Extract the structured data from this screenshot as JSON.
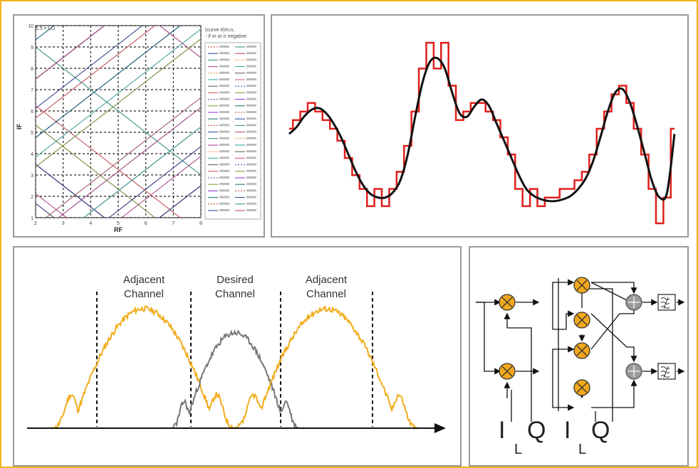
{
  "colors": {
    "frame": "#f2b31a",
    "panel_border": "#9a9a9a",
    "stair": "#e0201c",
    "smooth": "#111111",
    "adjacent": "#f2ac1c",
    "desired": "#777777",
    "mixer": "#f2a81c",
    "adder": "#9a9a9a"
  },
  "spur_chart": {
    "ylabel": "IF",
    "xlabel": "RF",
    "x_ticks": [
      "2",
      "3",
      "4",
      "5",
      "6",
      "7",
      "8"
    ],
    "y_ticks": [
      "1",
      "2",
      "3",
      "4",
      "5",
      "6",
      "7",
      "8",
      "9",
      "10"
    ],
    "lo_label": "5.5 = LO",
    "note_line1": "(curve #)m,n,",
    "note_line2": "- if m or n negative"
  },
  "spectrum": {
    "adjacent_left_line1": "Adjacent",
    "adjacent_left_line2": "Channel",
    "desired_line1": "Desired",
    "desired_line2": "Channel",
    "adjacent_right_line1": "Adjacent",
    "adjacent_right_line2": "Channel"
  },
  "mixer_diagram": {
    "i1": "I",
    "sub1": "L",
    "q1": "Q",
    "i2": "I",
    "sub2": "L",
    "q2": "Q",
    "filter_icon": "lowpass-filter-icon",
    "mixer_icon": "mixer-cross-icon",
    "adder_icon": "adder-plus-icon"
  },
  "chart_data": [
    {
      "type": "line",
      "title": "",
      "xlabel": "RF",
      "ylabel": "IF",
      "x_ticks": [
        2,
        3,
        4,
        5,
        6,
        7,
        8
      ],
      "y_ticks": [
        1,
        2,
        3,
        4,
        5,
        6,
        7,
        8,
        9,
        10
      ],
      "xlim": [
        2,
        8
      ],
      "ylim": [
        1,
        10
      ],
      "grid": true,
      "annotation": "5.5 = LO",
      "legend": "right"
    },
    {
      "type": "line",
      "title": "",
      "series": [
        {
          "values": [
            0.42,
            0.46,
            0.52,
            0.56,
            0.57,
            0.54,
            0.48,
            0.4,
            0.3,
            0.2,
            0.12,
            0.07,
            0.05,
            0.05,
            0.08,
            0.15,
            0.3,
            0.52,
            0.72,
            0.84,
            0.86,
            0.8,
            0.66,
            0.54,
            0.52,
            0.58,
            0.62,
            0.58,
            0.48,
            0.38,
            0.28,
            0.18,
            0.1,
            0.06,
            0.04,
            0.03,
            0.03,
            0.04,
            0.06,
            0.1,
            0.16,
            0.26,
            0.4,
            0.55,
            0.66,
            0.68,
            0.6,
            0.46,
            0.3,
            0.14,
            0.05,
            0.08,
            0.42
          ]
        },
        {
          "values": [
            0.45,
            0.5,
            0.55,
            0.6,
            0.55,
            0.5,
            0.45,
            0.38,
            0.28,
            0.18,
            0.1,
            0.0,
            0.1,
            0.0,
            0.1,
            0.2,
            0.35,
            0.55,
            0.8,
            0.95,
            0.8,
            0.95,
            0.7,
            0.5,
            0.55,
            0.6,
            0.6,
            0.55,
            0.5,
            0.4,
            0.3,
            0.1,
            0.0,
            0.1,
            0.0,
            0.05,
            0.05,
            0.1,
            0.1,
            0.15,
            0.2,
            0.3,
            0.45,
            0.55,
            0.65,
            0.7,
            0.6,
            0.45,
            0.3,
            0.1,
            -0.1,
            0.05,
            0.45
          ]
        }
      ]
    },
    {
      "type": "area",
      "title": "",
      "series": [
        {
          "name": "Adjacent Channel",
          "center": 0.27,
          "peak": 0.94
        },
        {
          "name": "Desired Channel",
          "center": 0.5,
          "peak": 0.58
        },
        {
          "name": "Adjacent Channel",
          "center": 0.73,
          "peak": 0.94
        }
      ]
    }
  ]
}
